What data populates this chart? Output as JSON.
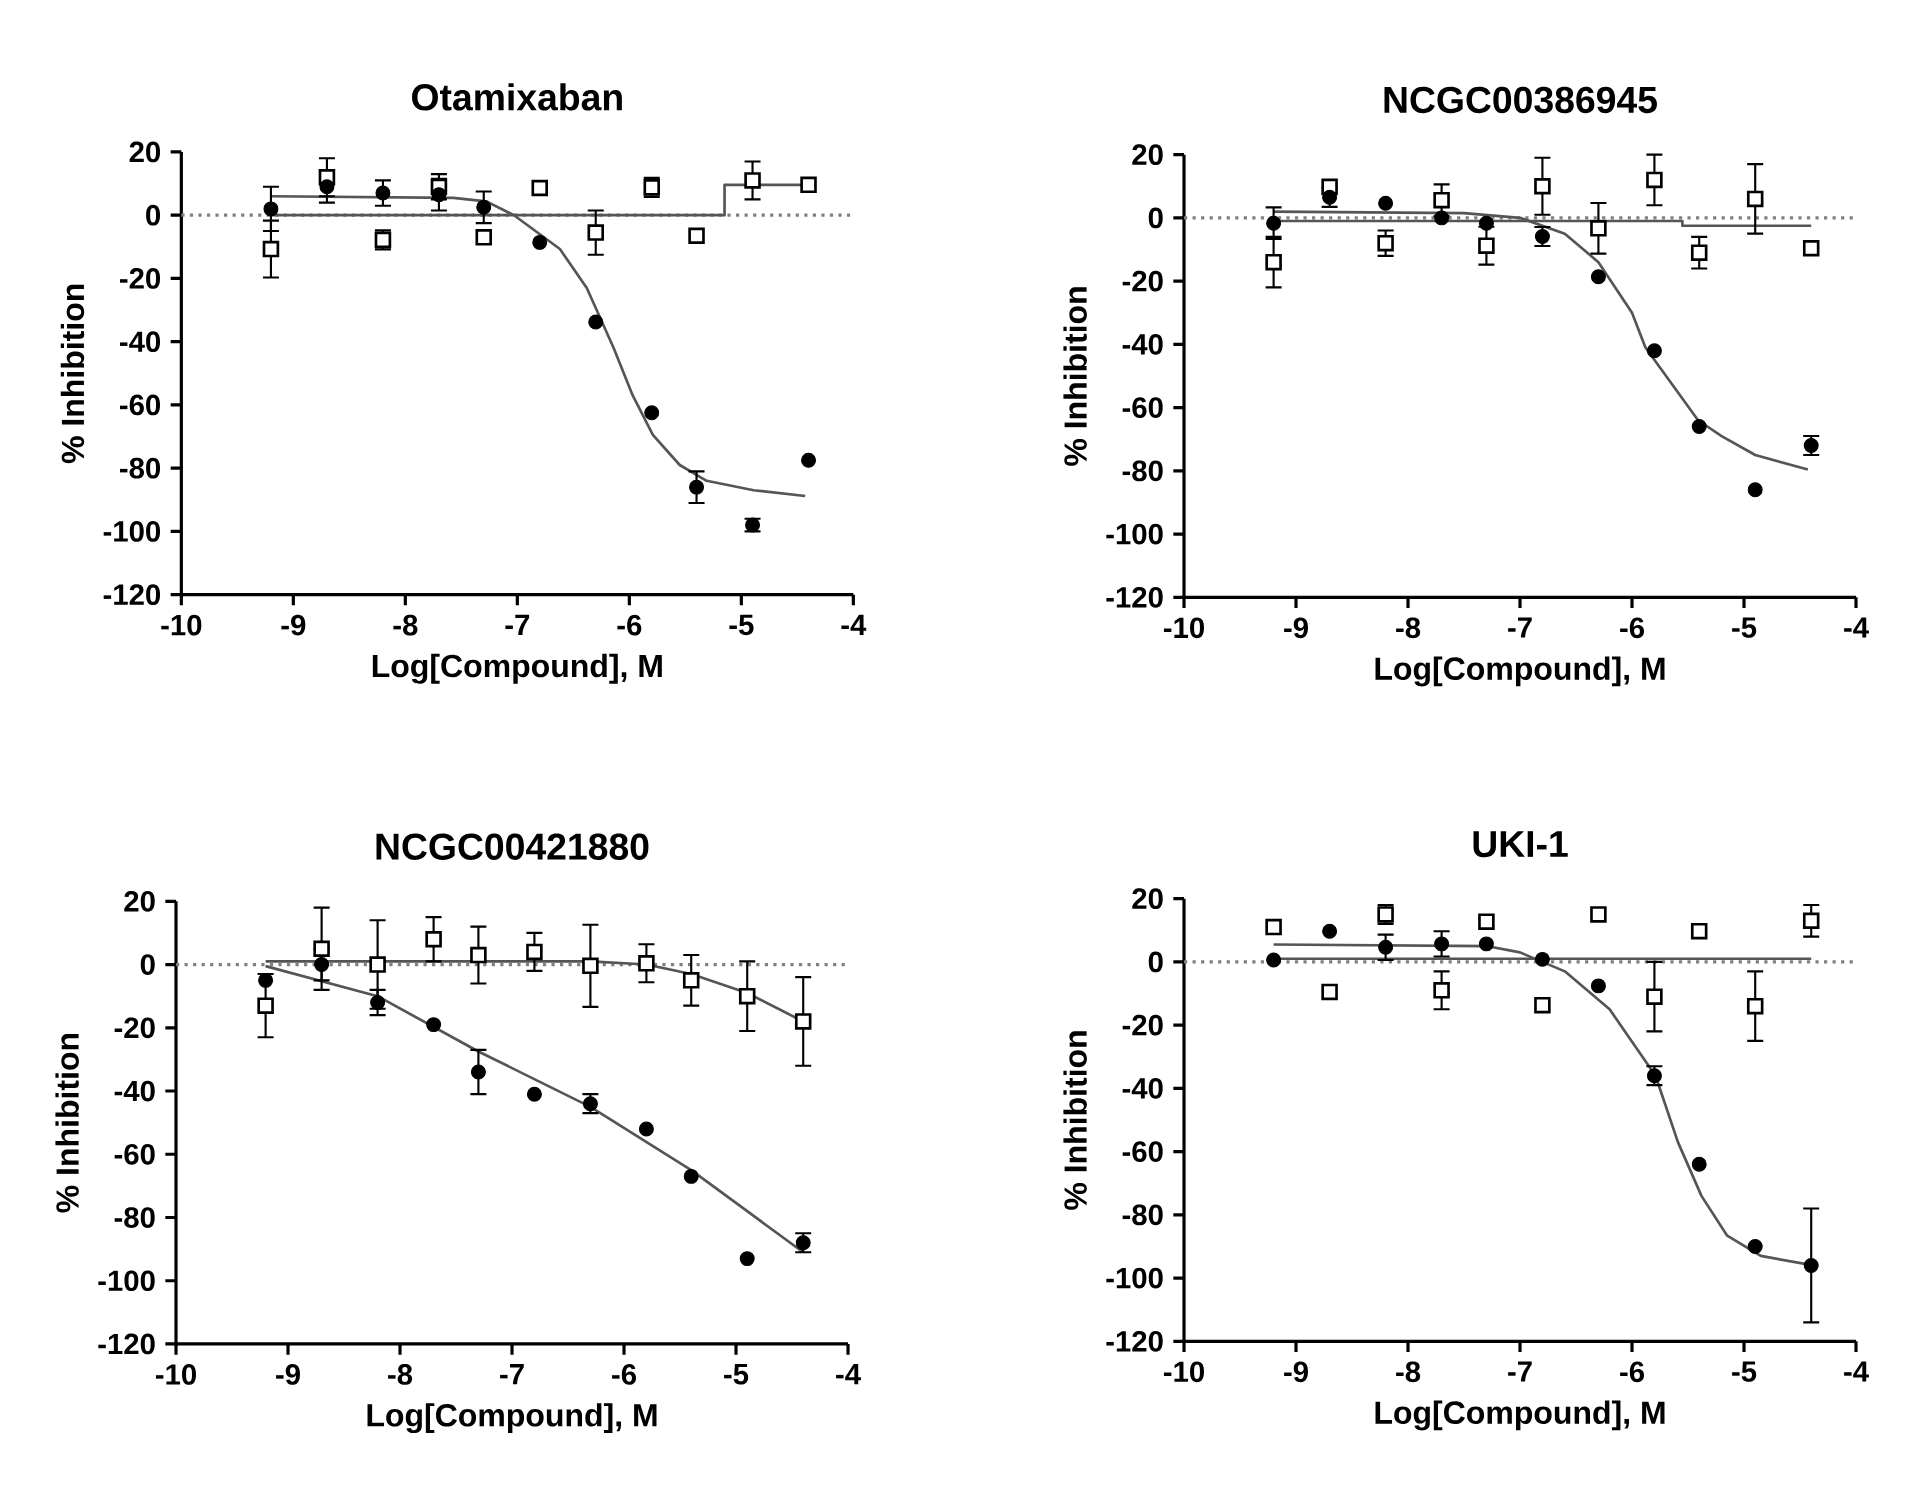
{
  "chart_data": [
    {
      "type": "scatter",
      "title": "Otamixaban",
      "xlabel": "Log[Compound], M",
      "ylabel": "% Inhibition",
      "xlim": [
        -10,
        -4
      ],
      "ylim": [
        -120,
        20
      ],
      "xticks": [
        -10,
        -9,
        -8,
        -7,
        -6,
        -5,
        -4
      ],
      "yticks": [
        -120,
        -100,
        -80,
        -60,
        -40,
        -20,
        0,
        20
      ],
      "x": [
        -9.2,
        -8.7,
        -8.2,
        -7.7,
        -7.3,
        -6.8,
        -6.3,
        -5.8,
        -5.4,
        -4.9,
        -4.4
      ],
      "ref_lines": [
        {
          "axis": "y",
          "value": 0,
          "line_style": "dotted"
        }
      ],
      "series": [
        {
          "marker": "square",
          "color": "#000000",
          "values": [
            -10.7,
            12,
            -7.8,
            9,
            -7,
            8.6,
            -5.5,
            8.8,
            -6.5,
            11,
            9.6
          ],
          "errors": [
            9,
            6,
            3,
            4,
            null,
            null,
            7,
            3,
            null,
            6,
            null
          ]
        },
        {
          "marker": "circle",
          "color": "#000000",
          "values": [
            2,
            9,
            7,
            6.5,
            2.5,
            -8.6,
            -33.8,
            -62.5,
            -86,
            -98,
            -77.5
          ],
          "errors": [
            7,
            5,
            4,
            5,
            5,
            null,
            null,
            null,
            5,
            2,
            null
          ]
        },
        {
          "type": "line",
          "marker": "none",
          "color": "#555555",
          "x": [
            -9.2,
            -7.57,
            -7.28,
            -7.03,
            -6.62,
            -6.38,
            -6.14,
            -5.97,
            -5.79,
            -5.55,
            -5.31,
            -4.89,
            -4.43
          ],
          "values": [
            6,
            5.5,
            4.4,
            0,
            -10.7,
            -23,
            -42,
            -57,
            -69.5,
            -79,
            -84,
            -87,
            -88.8
          ]
        },
        {
          "type": "line",
          "marker": "none",
          "color": "#555555",
          "x": [
            -9.2,
            -5.15,
            -5.15,
            -4.4
          ],
          "values": [
            0,
            0,
            9.6,
            9.6
          ]
        }
      ]
    },
    {
      "type": "scatter",
      "title": "NCGC00386945",
      "xlabel": "Log[Compound], M",
      "ylabel": "% Inhibition",
      "xlim": [
        -10,
        -4
      ],
      "ylim": [
        -120,
        20
      ],
      "xticks": [
        -10,
        -9,
        -8,
        -7,
        -6,
        -5,
        -4
      ],
      "yticks": [
        -120,
        -100,
        -80,
        -60,
        -40,
        -20,
        0,
        20
      ],
      "x": [
        -9.2,
        -8.7,
        -8.2,
        -7.7,
        -7.3,
        -6.8,
        -6.3,
        -5.8,
        -5.4,
        -4.9,
        -4.4
      ],
      "ref_lines": [
        {
          "axis": "y",
          "value": 0,
          "line_style": "dotted"
        }
      ],
      "series": [
        {
          "marker": "square",
          "color": "#000000",
          "values": [
            -14,
            9.8,
            -8,
            5.6,
            -8.8,
            10,
            -3.3,
            12,
            -11,
            6,
            -9.6
          ],
          "errors": [
            8,
            null,
            4,
            5,
            6,
            9,
            8,
            8,
            5,
            11,
            null
          ]
        },
        {
          "marker": "circle",
          "color": "#000000",
          "values": [
            -1.7,
            6.5,
            4.6,
            0,
            -1.7,
            -5.9,
            -18.6,
            -42,
            -66,
            -86,
            -72
          ],
          "errors": [
            5,
            3,
            null,
            null,
            null,
            3,
            null,
            null,
            null,
            null,
            3
          ]
        },
        {
          "type": "line",
          "marker": "none",
          "color": "#555555",
          "x": [
            -9.2,
            -7.5,
            -7,
            -6.6,
            -6.3,
            -6,
            -5.88,
            -5.41,
            -5.2,
            -4.9,
            -4.43
          ],
          "values": [
            2,
            1.5,
            0,
            -5,
            -14,
            -30,
            -41,
            -64,
            -69,
            -75,
            -79.6
          ]
        },
        {
          "type": "line",
          "marker": "none",
          "color": "#555555",
          "x": [
            -9.2,
            -5.55,
            -5.55,
            -4.4
          ],
          "values": [
            -1,
            -1,
            -2.5,
            -2.5
          ]
        }
      ]
    },
    {
      "type": "scatter",
      "title": "NCGC00421880",
      "xlabel": "Log[Compound], M",
      "ylabel": "% Inhibition",
      "xlim": [
        -10,
        -4
      ],
      "ylim": [
        -120,
        20
      ],
      "xticks": [
        -10,
        -9,
        -8,
        -7,
        -6,
        -5,
        -4
      ],
      "yticks": [
        -120,
        -100,
        -80,
        -60,
        -40,
        -20,
        0,
        20
      ],
      "x": [
        -9.2,
        -8.7,
        -8.2,
        -7.7,
        -7.3,
        -6.8,
        -6.3,
        -5.8,
        -5.4,
        -4.9,
        -4.4
      ],
      "ref_lines": [
        {
          "axis": "y",
          "value": 0,
          "line_style": "dotted"
        }
      ],
      "series": [
        {
          "marker": "square",
          "color": "#000000",
          "values": [
            -13,
            5,
            0,
            8,
            3,
            4,
            -0.4,
            0.4,
            -5,
            -10,
            -18
          ],
          "errors": [
            10,
            13,
            14,
            7,
            9,
            6,
            13,
            6,
            8,
            11,
            14
          ]
        },
        {
          "marker": "circle",
          "color": "#000000",
          "values": [
            -5,
            0,
            -12,
            -19,
            -34,
            -41,
            -44,
            -52,
            -67,
            -93,
            -88
          ],
          "errors": [
            null,
            5,
            4,
            null,
            7,
            null,
            3,
            null,
            null,
            null,
            3
          ]
        },
        {
          "type": "line",
          "marker": "none",
          "color": "#555555",
          "x": [
            -9.2,
            -8.2,
            -7.3,
            -6.3,
            -5.4,
            -4.9,
            -4.4
          ],
          "values": [
            -0.5,
            -10,
            -27.5,
            -45,
            -65,
            -78,
            -91
          ]
        },
        {
          "type": "line",
          "marker": "none",
          "color": "#555555",
          "x": [
            -9.2,
            -6.3,
            -5.8,
            -5.4,
            -4.9,
            -4.4
          ],
          "values": [
            1,
            1,
            0,
            -3,
            -9,
            -18
          ]
        }
      ]
    },
    {
      "type": "scatter",
      "title": "UKI-1",
      "xlabel": "Log[Compound], M",
      "ylabel": "% Inhibition",
      "xlim": [
        -10,
        -4
      ],
      "ylim": [
        -120,
        20
      ],
      "xticks": [
        -10,
        -9,
        -8,
        -7,
        -6,
        -5,
        -4
      ],
      "yticks": [
        -120,
        -100,
        -80,
        -60,
        -40,
        -20,
        0,
        20
      ],
      "x": [
        -9.2,
        -8.7,
        -8.2,
        -7.7,
        -7.3,
        -6.8,
        -6.3,
        -5.8,
        -5.4,
        -4.9,
        -4.4
      ],
      "ref_lines": [
        {
          "axis": "y",
          "value": 0,
          "line_style": "dotted"
        }
      ],
      "series": [
        {
          "marker": "square",
          "color": "#000000",
          "values": [
            11,
            -9.5,
            15,
            -9,
            12.7,
            -13.7,
            15,
            -11,
            9.7,
            -14,
            13
          ],
          "errors": [
            null,
            null,
            3,
            6,
            null,
            null,
            null,
            11,
            null,
            11,
            5
          ]
        },
        {
          "marker": "circle",
          "color": "#000000",
          "values": [
            0.6,
            9.7,
            4.6,
            5.7,
            5.7,
            0.8,
            -7.6,
            -36,
            -64,
            -90,
            -96
          ],
          "errors": [
            null,
            null,
            4,
            4,
            null,
            null,
            null,
            3,
            null,
            null,
            18
          ]
        },
        {
          "type": "line",
          "marker": "none",
          "color": "#555555",
          "x": [
            -9.2,
            -7.3,
            -7,
            -6.6,
            -6.2,
            -5.79,
            -5.59,
            -5.38,
            -5.15,
            -4.85,
            -4.38
          ],
          "values": [
            5.5,
            5,
            3,
            -3,
            -15,
            -36,
            -57,
            -74,
            -86.6,
            -93,
            -96
          ]
        },
        {
          "type": "line",
          "marker": "none",
          "color": "#555555",
          "x": [
            -9.2,
            -4.4
          ],
          "values": [
            1,
            1
          ]
        }
      ]
    }
  ]
}
